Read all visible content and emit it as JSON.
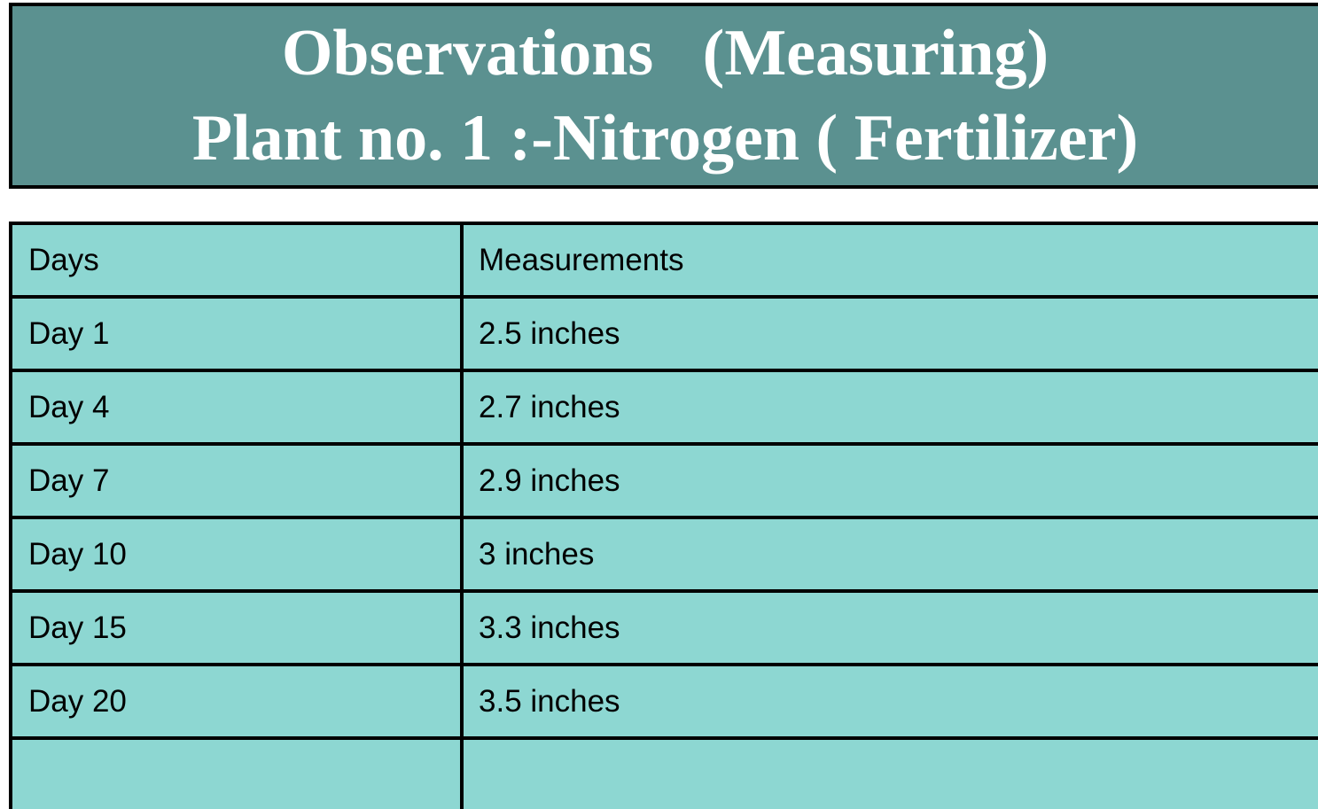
{
  "header": {
    "title": [
      "Observations   (Measuring)",
      "Plant no. 1 :-Nitrogen ( Fertilizer)"
    ]
  },
  "table": {
    "columns": [
      "Days",
      "Measurements"
    ],
    "rows": [
      [
        "Day 1",
        "2.5 inches"
      ],
      [
        "Day 4",
        "2.7 inches"
      ],
      [
        "Day 7",
        "2.9 inches"
      ],
      [
        "Day 10",
        "3 inches"
      ],
      [
        "Day 15",
        "3.3 inches"
      ],
      [
        "Day 20",
        "3.5 inches"
      ]
    ]
  }
}
